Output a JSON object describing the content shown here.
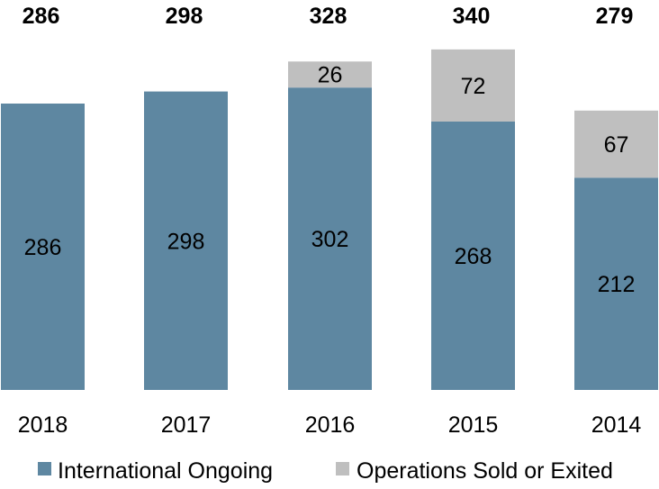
{
  "chart_data": {
    "type": "bar",
    "stacked": true,
    "title": "",
    "xlabel": "",
    "ylabel": "",
    "ylim": [
      0,
      340
    ],
    "grid": false,
    "legend_position": "bottom",
    "categories": [
      "2018",
      "2017",
      "2016",
      "2015",
      "2014"
    ],
    "totals": [
      "286",
      "298",
      "328",
      "340",
      "279"
    ],
    "series": [
      {
        "name": "International Ongoing",
        "color": "#5e87a1",
        "values": [
          286,
          298,
          302,
          268,
          212
        ],
        "labels": [
          "286",
          "298",
          "302",
          "268",
          "212"
        ]
      },
      {
        "name": "Operations Sold or Exited",
        "color": "#bfbfbf",
        "values": [
          0,
          0,
          26,
          72,
          67
        ],
        "labels": [
          "",
          "",
          "26",
          "72",
          "67"
        ]
      }
    ]
  }
}
